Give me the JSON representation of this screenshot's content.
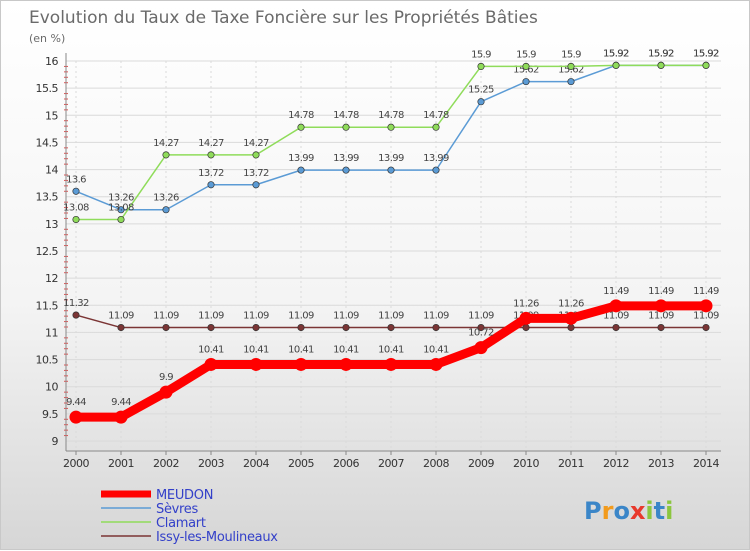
{
  "chart_data": {
    "type": "line",
    "title": "Evolution du Taux de Taxe Foncière sur les Propriétés Bâties",
    "ylabel": "(en %)",
    "x": [
      "2000",
      "2001",
      "2002",
      "2003",
      "2004",
      "2005",
      "2006",
      "2007",
      "2008",
      "2009",
      "2010",
      "2011",
      "2012",
      "2013",
      "2014"
    ],
    "ylim": [
      9,
      16
    ],
    "yticks": [
      "9",
      "9.5",
      "10",
      "10.5",
      "11",
      "11.5",
      "12",
      "12.5",
      "13",
      "13.5",
      "14",
      "14.5",
      "15",
      "15.5",
      "16"
    ],
    "legend_position": "bottom-left",
    "series": [
      {
        "name": "MEUDON",
        "color": "#ff0000",
        "values": [
          9.44,
          9.44,
          9.9,
          10.41,
          10.41,
          10.41,
          10.41,
          10.41,
          10.41,
          10.72,
          11.26,
          11.26,
          11.49,
          11.49,
          11.49
        ],
        "labels": [
          "9.44",
          "9.44",
          "9.9",
          "10.41",
          "10.41",
          "10.41",
          "10.41",
          "10.41",
          "10.41",
          "10.72",
          "11.26",
          "11.26",
          "11.49",
          "11.49",
          "11.49"
        ]
      },
      {
        "name": "Sèvres",
        "color": "#5b9bd5",
        "values": [
          13.6,
          13.26,
          13.26,
          13.72,
          13.72,
          13.99,
          13.99,
          13.99,
          13.99,
          15.25,
          15.62,
          15.62,
          15.92,
          15.92,
          15.92
        ],
        "labels": [
          "13.6",
          "13.26",
          "13.26",
          "13.72",
          "13.72",
          "13.99",
          "13.99",
          "13.99",
          "13.99",
          "15.25",
          "15.62",
          "15.62",
          "15.92",
          "15.92",
          "15.92"
        ]
      },
      {
        "name": "Clamart",
        "color": "#8fdc5a",
        "values": [
          13.08,
          13.08,
          14.27,
          14.27,
          14.27,
          14.78,
          14.78,
          14.78,
          14.78,
          15.9,
          15.9,
          15.9,
          15.92,
          15.92,
          15.92
        ],
        "labels": [
          "13.08",
          "13.08",
          "14.27",
          "14.27",
          "14.27",
          "14.78",
          "14.78",
          "14.78",
          "14.78",
          "15.9",
          "15.9",
          "15.9",
          "15.92",
          "15.92",
          "15.92"
        ]
      },
      {
        "name": "Issy-les-Moulineaux",
        "color": "#7b3535",
        "values": [
          11.32,
          11.09,
          11.09,
          11.09,
          11.09,
          11.09,
          11.09,
          11.09,
          11.09,
          11.09,
          11.09,
          11.09,
          11.09,
          11.09,
          11.09
        ],
        "labels": [
          "11.32",
          "11.09",
          "11.09",
          "11.09",
          "11.09",
          "11.09",
          "11.09",
          "11.09",
          "11.09",
          "11.09",
          "11.09",
          "11.09",
          "11.09",
          "11.09",
          "11.09"
        ]
      }
    ]
  },
  "logo": {
    "text": "Proxiti",
    "colors": [
      "#3b86c8",
      "#f29b1d",
      "#3b86c8",
      "#e8392c",
      "#8cc63f",
      "#3b86c8",
      "#8cc63f"
    ]
  }
}
